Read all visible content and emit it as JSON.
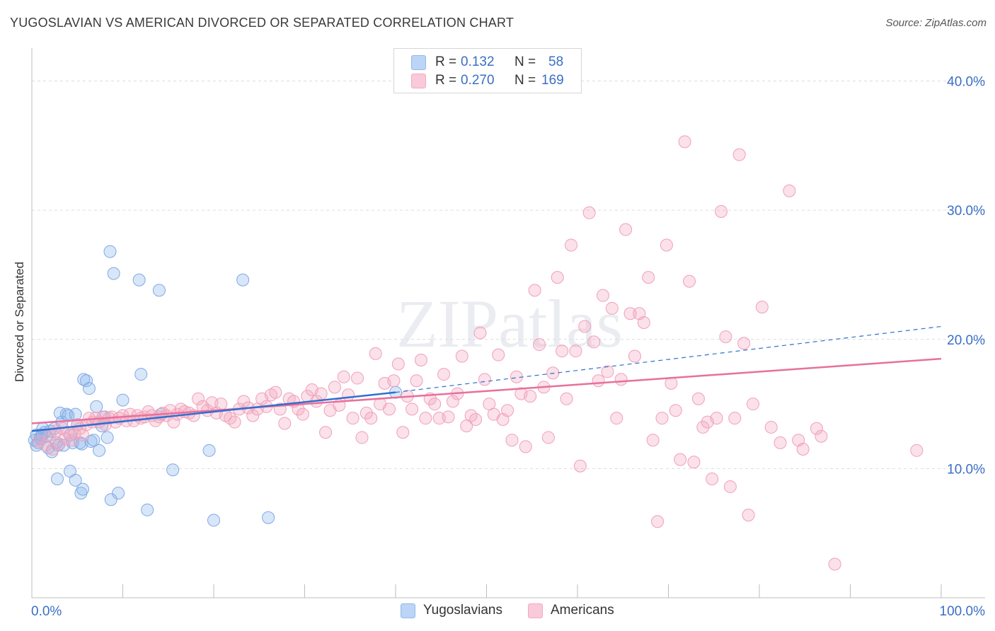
{
  "title": "YUGOSLAVIAN VS AMERICAN DIVORCED OR SEPARATED CORRELATION CHART",
  "source": "Source: ZipAtlas.com",
  "watermark": "ZIPatlas",
  "legend": {
    "rows": [
      {
        "r_label": "R =",
        "r_value": "0.132",
        "n_label": "N =",
        "n_value": "58",
        "color": "#8fb8ee"
      },
      {
        "r_label": "R =",
        "r_value": "0.270",
        "n_label": "N =",
        "n_value": "169",
        "color": "#f4a8c0"
      }
    ]
  },
  "bottom_legend": [
    {
      "label": "Yugoslavians",
      "color": "#8fb8ee"
    },
    {
      "label": "Americans",
      "color": "#f4a8c0"
    }
  ],
  "chart_data": {
    "type": "scatter",
    "title": "YUGOSLAVIAN VS AMERICAN DIVORCED OR SEPARATED CORRELATION CHART",
    "xlabel": "",
    "ylabel": "Divorced or Separated",
    "xlim": [
      0,
      100
    ],
    "ylim": [
      0,
      42
    ],
    "x_tick_labels": [
      "0.0%",
      "100.0%"
    ],
    "y_ticks": [
      10,
      20,
      30,
      40
    ],
    "y_tick_labels": [
      "10.0%",
      "20.0%",
      "30.0%",
      "40.0%"
    ],
    "grid": "horizontal dashed",
    "legend_position": "top-center",
    "colors": {
      "Yugoslavians": "#8fb8ee",
      "Americans": "#f4a8c0",
      "Yugoslavians_line": "#2f6fd0",
      "Americans_line": "#e8709a",
      "axis_text": "#3a6fc4"
    },
    "series": [
      {
        "name": "Yugoslavians",
        "trend": {
          "x0": 0,
          "y0": 12.9,
          "x1": 40,
          "y1": 15.9,
          "dashed_to_x": 100,
          "dashed_to_y": 21.0
        },
        "points": [
          [
            0.3,
            12.2
          ],
          [
            0.5,
            12.6
          ],
          [
            0.7,
            12.0
          ],
          [
            0.9,
            12.4
          ],
          [
            1.2,
            13.1
          ],
          [
            1.4,
            12.8
          ],
          [
            1.6,
            12.5
          ],
          [
            1.8,
            11.6
          ],
          [
            2.0,
            12.9
          ],
          [
            2.2,
            11.3
          ],
          [
            2.5,
            13.1
          ],
          [
            2.7,
            12.0
          ],
          [
            2.9,
            11.8
          ],
          [
            3.1,
            14.3
          ],
          [
            3.3,
            13.6
          ],
          [
            3.5,
            11.8
          ],
          [
            3.8,
            14.2
          ],
          [
            4.0,
            14.1
          ],
          [
            4.2,
            12.6
          ],
          [
            4.5,
            12.0
          ],
          [
            4.8,
            14.2
          ],
          [
            5.0,
            13.4
          ],
          [
            5.3,
            12.0
          ],
          [
            5.5,
            11.9
          ],
          [
            5.7,
            16.9
          ],
          [
            6.0,
            16.8
          ],
          [
            6.3,
            16.2
          ],
          [
            6.5,
            12.1
          ],
          [
            6.8,
            12.2
          ],
          [
            7.1,
            14.8
          ],
          [
            7.4,
            11.4
          ],
          [
            7.7,
            13.3
          ],
          [
            8.0,
            14.0
          ],
          [
            8.3,
            12.4
          ],
          [
            8.6,
            26.8
          ],
          [
            9.0,
            25.1
          ],
          [
            9.5,
            8.1
          ],
          [
            10.0,
            15.3
          ],
          [
            11.8,
            24.6
          ],
          [
            12.0,
            17.3
          ],
          [
            14.0,
            23.8
          ],
          [
            14.2,
            14.2
          ],
          [
            15.5,
            9.9
          ],
          [
            19.5,
            11.4
          ],
          [
            23.2,
            24.6
          ],
          [
            40.0,
            15.9
          ],
          [
            1.0,
            12.3
          ],
          [
            2.8,
            9.2
          ],
          [
            4.2,
            9.8
          ],
          [
            4.8,
            9.1
          ],
          [
            5.4,
            8.1
          ],
          [
            5.6,
            8.4
          ],
          [
            8.7,
            7.6
          ],
          [
            12.7,
            6.8
          ],
          [
            20.0,
            6.0
          ],
          [
            26.0,
            6.2
          ],
          [
            0.5,
            11.8
          ],
          [
            1.1,
            12.6
          ]
        ]
      },
      {
        "name": "Americans",
        "trend": {
          "x0": 0,
          "y0": 13.5,
          "x1": 100,
          "y1": 18.5
        },
        "points": [
          [
            0.8,
            12.1
          ],
          [
            1.5,
            11.8
          ],
          [
            2.0,
            12.6
          ],
          [
            2.3,
            11.5
          ],
          [
            2.6,
            12.9
          ],
          [
            3.0,
            11.9
          ],
          [
            3.4,
            13.1
          ],
          [
            3.7,
            12.3
          ],
          [
            4.0,
            12.8
          ],
          [
            4.4,
            12.2
          ],
          [
            4.7,
            12.7
          ],
          [
            5.0,
            13.4
          ],
          [
            5.3,
            13.1
          ],
          [
            5.6,
            12.6
          ],
          [
            6.0,
            13.4
          ],
          [
            6.3,
            13.9
          ],
          [
            6.7,
            13.6
          ],
          [
            7.0,
            13.9
          ],
          [
            7.4,
            13.6
          ],
          [
            7.8,
            14.0
          ],
          [
            8.1,
            13.4
          ],
          [
            8.5,
            13.9
          ],
          [
            8.8,
            14.0
          ],
          [
            9.2,
            13.6
          ],
          [
            9.6,
            13.9
          ],
          [
            10.0,
            14.1
          ],
          [
            10.4,
            13.7
          ],
          [
            10.8,
            14.2
          ],
          [
            11.2,
            13.7
          ],
          [
            11.6,
            14.1
          ],
          [
            12.0,
            13.9
          ],
          [
            12.4,
            14.0
          ],
          [
            12.8,
            14.4
          ],
          [
            13.2,
            14.1
          ],
          [
            13.6,
            13.7
          ],
          [
            14.0,
            14.0
          ],
          [
            14.4,
            14.3
          ],
          [
            14.8,
            14.1
          ],
          [
            15.2,
            14.5
          ],
          [
            15.6,
            13.6
          ],
          [
            16.0,
            14.2
          ],
          [
            16.4,
            14.6
          ],
          [
            16.8,
            14.4
          ],
          [
            17.3,
            14.3
          ],
          [
            17.8,
            14.1
          ],
          [
            18.3,
            15.4
          ],
          [
            18.8,
            14.8
          ],
          [
            19.3,
            14.5
          ],
          [
            19.8,
            15.1
          ],
          [
            20.3,
            14.3
          ],
          [
            20.8,
            15.0
          ],
          [
            21.3,
            14.1
          ],
          [
            21.8,
            13.9
          ],
          [
            22.3,
            13.6
          ],
          [
            22.8,
            14.6
          ],
          [
            23.3,
            15.2
          ],
          [
            23.8,
            14.7
          ],
          [
            24.3,
            14.1
          ],
          [
            24.8,
            14.6
          ],
          [
            25.3,
            15.4
          ],
          [
            25.8,
            14.8
          ],
          [
            26.3,
            15.7
          ],
          [
            26.8,
            15.9
          ],
          [
            27.3,
            14.6
          ],
          [
            27.8,
            13.5
          ],
          [
            28.3,
            15.4
          ],
          [
            28.8,
            15.2
          ],
          [
            29.3,
            14.6
          ],
          [
            29.8,
            14.2
          ],
          [
            30.3,
            15.6
          ],
          [
            30.8,
            16.1
          ],
          [
            31.3,
            15.2
          ],
          [
            31.8,
            15.8
          ],
          [
            32.3,
            12.8
          ],
          [
            32.8,
            14.5
          ],
          [
            33.3,
            16.3
          ],
          [
            33.8,
            14.9
          ],
          [
            34.3,
            17.1
          ],
          [
            34.8,
            15.7
          ],
          [
            35.3,
            13.9
          ],
          [
            35.8,
            17.0
          ],
          [
            36.3,
            12.4
          ],
          [
            36.8,
            14.3
          ],
          [
            37.3,
            13.9
          ],
          [
            37.8,
            18.9
          ],
          [
            38.3,
            15.0
          ],
          [
            38.8,
            16.6
          ],
          [
            39.3,
            14.6
          ],
          [
            39.8,
            16.8
          ],
          [
            40.3,
            18.1
          ],
          [
            40.8,
            12.8
          ],
          [
            41.3,
            15.6
          ],
          [
            41.8,
            14.6
          ],
          [
            42.3,
            16.8
          ],
          [
            42.8,
            18.4
          ],
          [
            43.3,
            13.9
          ],
          [
            43.8,
            15.4
          ],
          [
            44.3,
            15.0
          ],
          [
            44.8,
            13.9
          ],
          [
            45.3,
            17.3
          ],
          [
            45.8,
            14.0
          ],
          [
            46.3,
            15.2
          ],
          [
            46.8,
            15.8
          ],
          [
            47.3,
            18.7
          ],
          [
            47.8,
            13.3
          ],
          [
            48.3,
            14.1
          ],
          [
            48.8,
            13.8
          ],
          [
            49.3,
            20.5
          ],
          [
            49.8,
            16.9
          ],
          [
            50.3,
            15.0
          ],
          [
            50.8,
            14.2
          ],
          [
            51.3,
            18.8
          ],
          [
            51.8,
            13.8
          ],
          [
            52.3,
            14.5
          ],
          [
            52.8,
            12.2
          ],
          [
            53.3,
            17.1
          ],
          [
            53.8,
            15.8
          ],
          [
            54.3,
            11.7
          ],
          [
            54.8,
            15.6
          ],
          [
            55.3,
            23.8
          ],
          [
            55.8,
            19.6
          ],
          [
            56.3,
            16.3
          ],
          [
            56.8,
            12.4
          ],
          [
            57.3,
            17.4
          ],
          [
            57.8,
            24.8
          ],
          [
            58.3,
            19.1
          ],
          [
            58.8,
            15.4
          ],
          [
            59.3,
            27.3
          ],
          [
            59.8,
            19.1
          ],
          [
            60.3,
            10.2
          ],
          [
            60.8,
            21.0
          ],
          [
            61.3,
            29.8
          ],
          [
            61.8,
            19.8
          ],
          [
            62.3,
            16.8
          ],
          [
            62.8,
            23.4
          ],
          [
            63.3,
            17.5
          ],
          [
            63.8,
            22.4
          ],
          [
            64.3,
            13.9
          ],
          [
            64.8,
            16.9
          ],
          [
            65.3,
            28.5
          ],
          [
            65.8,
            22.0
          ],
          [
            66.3,
            18.7
          ],
          [
            66.8,
            22.0
          ],
          [
            67.3,
            21.3
          ],
          [
            67.8,
            24.8
          ],
          [
            68.3,
            12.2
          ],
          [
            68.8,
            5.9
          ],
          [
            69.3,
            13.9
          ],
          [
            69.8,
            27.3
          ],
          [
            70.3,
            16.6
          ],
          [
            70.8,
            14.5
          ],
          [
            71.3,
            10.7
          ],
          [
            71.8,
            35.3
          ],
          [
            72.3,
            24.5
          ],
          [
            72.8,
            10.5
          ],
          [
            73.3,
            15.4
          ],
          [
            73.8,
            13.2
          ],
          [
            74.3,
            13.6
          ],
          [
            74.8,
            9.2
          ],
          [
            75.3,
            13.9
          ],
          [
            75.8,
            29.9
          ],
          [
            76.3,
            20.2
          ],
          [
            76.8,
            8.6
          ],
          [
            77.3,
            13.9
          ],
          [
            77.8,
            34.3
          ],
          [
            78.3,
            19.7
          ],
          [
            78.8,
            6.4
          ],
          [
            79.3,
            15.0
          ],
          [
            80.3,
            22.5
          ],
          [
            81.3,
            13.2
          ],
          [
            82.3,
            12.0
          ],
          [
            83.3,
            31.5
          ],
          [
            84.3,
            12.2
          ],
          [
            84.8,
            11.5
          ],
          [
            86.3,
            13.1
          ],
          [
            86.8,
            12.5
          ],
          [
            88.3,
            2.6
          ],
          [
            97.3,
            11.4
          ]
        ]
      }
    ]
  }
}
